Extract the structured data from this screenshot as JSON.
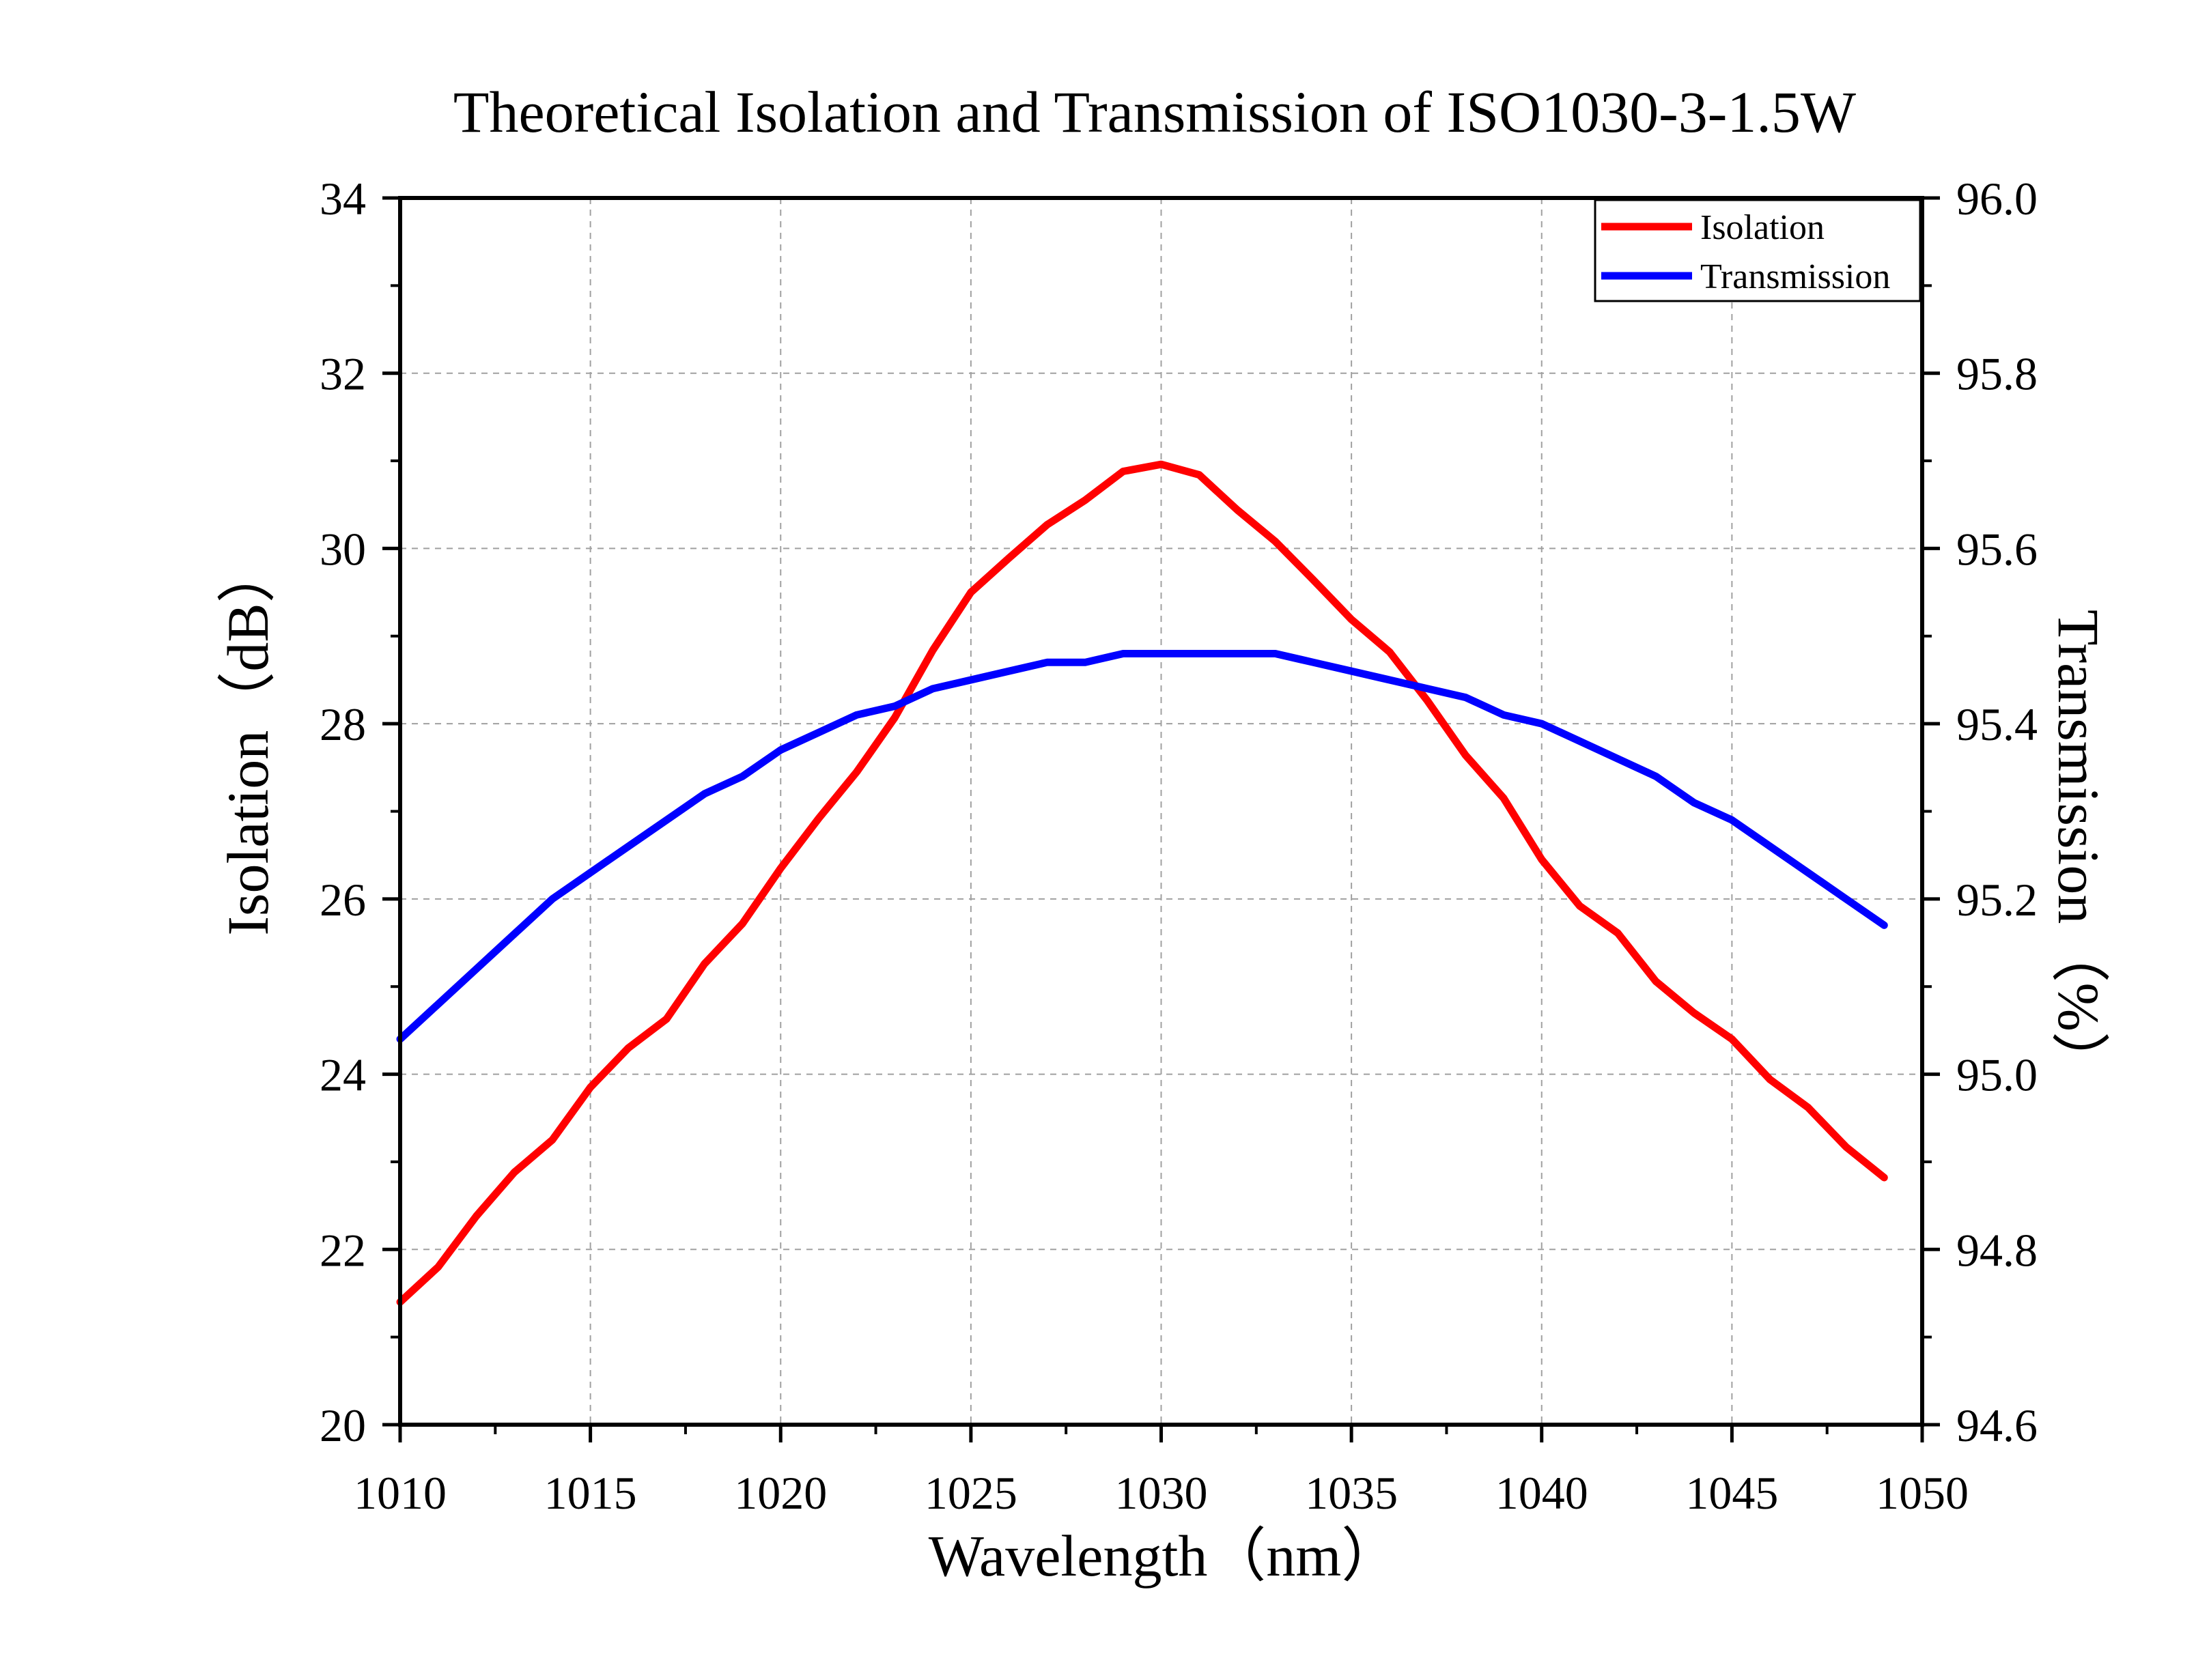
{
  "chart_data": {
    "type": "line",
    "title": "Theoretical Isolation and Transmission of ISO1030-3-1.5W",
    "xlabel": "Wavelength（nm）",
    "ylabel_left": "Isolation（dB）",
    "ylabel_right": "Transmission（%）",
    "xlim": [
      1010,
      1050
    ],
    "ylim_left": [
      20,
      34
    ],
    "ylim_right": [
      94.6,
      96.0
    ],
    "x_ticks": [
      "1010",
      "1015",
      "1020",
      "1025",
      "1030",
      "1035",
      "1040",
      "1045",
      "1050"
    ],
    "y_left_ticks": [
      "20",
      "22",
      "24",
      "26",
      "28",
      "30",
      "32",
      "34"
    ],
    "y_right_ticks": [
      "94.6",
      "94.8",
      "95.0",
      "95.2",
      "95.4",
      "95.6",
      "95.8",
      "96.0"
    ],
    "grid": true,
    "legend_position": "top-right",
    "x": [
      1010,
      1011,
      1012,
      1013,
      1014,
      1015,
      1016,
      1017,
      1018,
      1019,
      1020,
      1021,
      1022,
      1023,
      1024,
      1025,
      1026,
      1027,
      1028,
      1029,
      1030,
      1031,
      1032,
      1033,
      1034,
      1035,
      1036,
      1037,
      1038,
      1039,
      1040,
      1041,
      1042,
      1043,
      1044,
      1045,
      1046,
      1047,
      1048,
      1049
    ],
    "series": [
      {
        "name": "Isolation",
        "axis": "left",
        "color": "#ff0000",
        "values": [
          21.4,
          21.8,
          22.38,
          22.88,
          23.25,
          23.85,
          24.3,
          24.63,
          25.26,
          25.72,
          26.35,
          26.92,
          27.45,
          28.07,
          28.84,
          29.5,
          29.89,
          30.27,
          30.55,
          30.88,
          30.96,
          30.84,
          30.44,
          30.08,
          29.64,
          29.19,
          28.82,
          28.26,
          27.64,
          27.15,
          26.45,
          25.92,
          25.61,
          25.06,
          24.7,
          24.4,
          23.94,
          23.62,
          23.17,
          22.82
        ]
      },
      {
        "name": "Transmission",
        "axis": "right",
        "color": "#0000ff",
        "values": [
          95.04,
          95.08,
          95.12,
          95.16,
          95.2,
          95.23,
          95.26,
          95.29,
          95.32,
          95.34,
          95.37,
          95.39,
          95.41,
          95.42,
          95.44,
          95.45,
          95.46,
          95.47,
          95.47,
          95.48,
          95.48,
          95.48,
          95.48,
          95.48,
          95.47,
          95.46,
          95.45,
          95.44,
          95.43,
          95.41,
          95.4,
          95.38,
          95.36,
          95.34,
          95.31,
          95.29,
          95.26,
          95.23,
          95.2,
          95.17
        ]
      }
    ]
  }
}
